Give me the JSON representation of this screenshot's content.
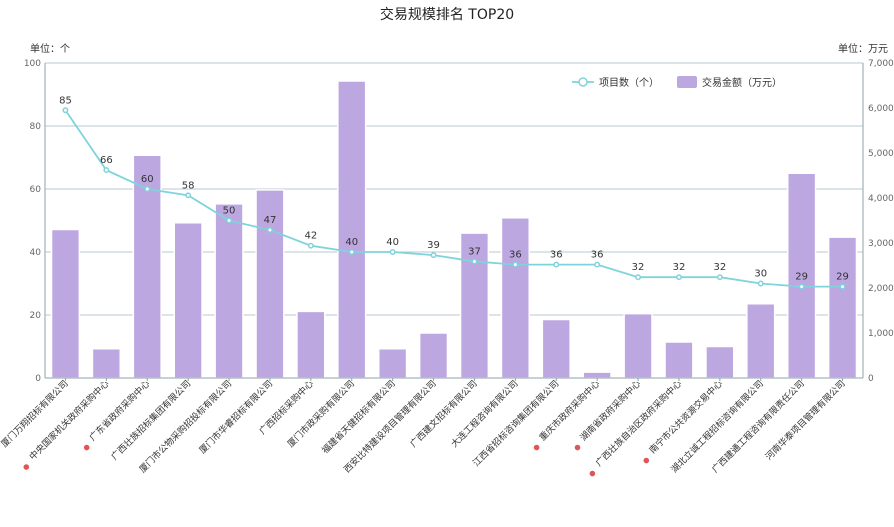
{
  "chart_data": {
    "type": "bar",
    "title": "交易规模排名 TOP20",
    "y_left_unit": "单位：个",
    "y_right_unit": "单位：万元",
    "y_left_ticks": [
      "0",
      "20",
      "40",
      "60",
      "80",
      "100"
    ],
    "y_right_ticks": [
      "0",
      "1,000",
      "2,000",
      "3,000",
      "4,000",
      "5,000",
      "6,000",
      "7,000"
    ],
    "y_left_range": [
      0,
      100
    ],
    "y_right_range": [
      0,
      7000
    ],
    "grid": true,
    "legend_position": "top-right",
    "categories": [
      "厦门万翔招标有限公司",
      "中央国家机关政府采购中心",
      "广东省政府采购中心",
      "广西壮族招标集团有限公司",
      "厦门市公物采购招投标有限公司",
      "厦门市华睿招标有限公司",
      "广西招标采购中心",
      "厦门市政采购有限公司",
      "福建省天健招标有限公司",
      "西安比特建设项目管理有限公司",
      "广西建文招标有限公司",
      "大连工程咨询有限公司",
      "江西省招标咨询集团有限公司",
      "重庆市政府采购中心",
      "湖南省政府采购中心",
      "广西壮族自治区政府采购中心",
      "南宁市公共资源交易中心",
      "湖北立诚工程招标咨询有限公司",
      "广西建通工程咨询有限责任公司",
      "河南华泰项目管理有限公司"
    ],
    "marked_categories": [
      1,
      2,
      13,
      14,
      15,
      16
    ],
    "marker_color": "#e05555",
    "series": [
      {
        "name": "项目数（个）",
        "type": "line",
        "axis": "left",
        "color": "#7fd3dc",
        "values": [
          85,
          66,
          60,
          58,
          50,
          47,
          42,
          40,
          40,
          39,
          37,
          36,
          36,
          36,
          32,
          32,
          32,
          30,
          29,
          29
        ]
      },
      {
        "name": "交易金额（万元）",
        "type": "bar",
        "axis": "right",
        "color": "#bca7e0",
        "values": [
          3300,
          650,
          4950,
          3450,
          3870,
          4180,
          1480,
          6600,
          650,
          1000,
          3220,
          3560,
          1300,
          130,
          1430,
          800,
          700,
          1650,
          4550,
          3130
        ]
      }
    ]
  }
}
